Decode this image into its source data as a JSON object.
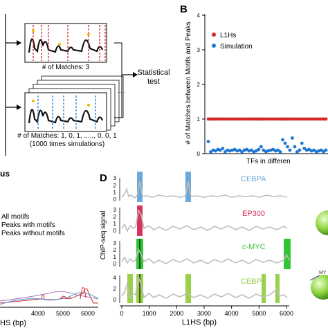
{
  "panel_a": {
    "matches_label": "# of Matches: 3",
    "sim_matches_label": "# of Matches: 1, 0, 1, ....., 0, 0, 1",
    "sim_note": "(1000 times simulations)",
    "stat_test": [
      "Statistical",
      "test"
    ],
    "dots": "....."
  },
  "panel_b": {
    "letter": "B",
    "xlabel": "TFs in differen",
    "ylabel": "# of Matches between Motifs and Peaks",
    "legend": [
      {
        "label": "L1Hs",
        "color": "#d62728"
      },
      {
        "label": "Simulation",
        "color": "#1f77d4"
      }
    ],
    "yticks": [
      "0",
      "1",
      "2",
      "3",
      "4"
    ]
  },
  "panel_c": {
    "title_partial": "us",
    "legend": [
      "All motifs",
      "Peaks with motifs",
      "Peaks without motifs"
    ],
    "xticks": [
      "4000",
      "5000",
      "6000"
    ],
    "xlabel_partial": "HS (bp)"
  },
  "panel_d": {
    "letter": "D",
    "ylabel": "ChIP-seq signal",
    "xlabel": "L1HS (bp)",
    "xticks": [
      "0",
      "1000",
      "2000",
      "3000",
      "4000",
      "5000",
      "6000"
    ],
    "tracks": [
      {
        "name": "CEBPA",
        "color": "#6aa9d8",
        "yticks": [
          "3",
          "2",
          "1",
          "0"
        ]
      },
      {
        "name": "EP300",
        "color": "#d6335e",
        "yticks": [
          "3",
          "2",
          "1",
          "0"
        ]
      },
      {
        "name": "c-MYC",
        "color": "#33c433",
        "yticks": [
          "3",
          "2",
          "1",
          "0"
        ]
      },
      {
        "name": "CEBPB",
        "color": "#9ad14a",
        "yticks": [
          "4",
          "2",
          "0"
        ]
      }
    ],
    "right_label": "MY"
  },
  "chart_data": [
    {
      "type": "scatter",
      "ylabel": "# of Matches between Motifs and Peaks",
      "xlabel": "TFs in differen",
      "ylim": [
        0,
        4
      ],
      "series": [
        {
          "name": "L1Hs",
          "values": [
            1,
            1,
            1,
            1,
            1,
            1,
            1,
            1,
            1,
            1,
            1,
            1,
            1,
            1,
            1,
            1,
            1,
            1,
            1,
            1,
            1,
            1,
            1,
            1,
            1,
            1,
            1,
            1,
            1,
            1,
            1,
            1,
            1,
            1,
            1,
            1,
            1,
            1,
            1,
            1,
            1,
            1,
            1,
            1,
            1,
            1,
            1,
            1,
            1,
            1
          ]
        },
        {
          "name": "Simulation",
          "values": [
            0.35,
            0.05,
            0.1,
            0.08,
            0.12,
            0.1,
            0.15,
            0.05,
            0.1,
            0.08,
            0.1,
            0.12,
            0.08,
            0.1,
            0.05,
            0.1,
            0.12,
            0.08,
            0.1,
            0.05,
            0.08,
            0.12,
            0.2,
            0.1,
            0.06,
            0.08,
            0.1,
            0.12,
            0.08,
            0.1,
            0.05,
            0.4,
            0.3,
            0.2,
            0.1,
            0.45,
            0.2,
            0.05,
            0.1,
            0.3,
            0.15,
            0.1,
            0.12,
            0.08,
            0.1,
            0.05,
            0.08,
            0.1,
            0.06,
            0.1
          ]
        }
      ]
    }
  ]
}
